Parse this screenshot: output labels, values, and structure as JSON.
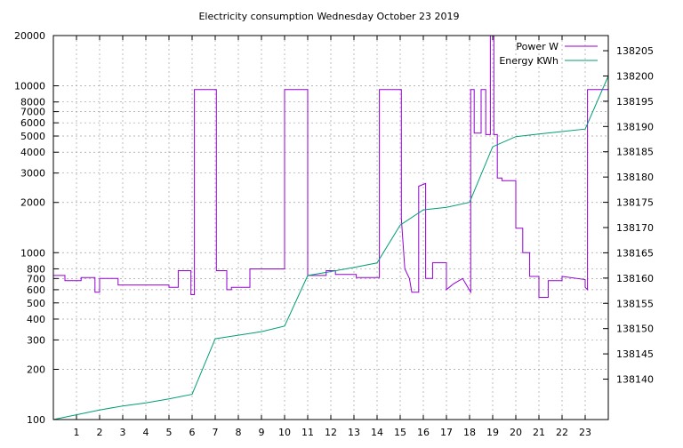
{
  "chart_data": {
    "type": "line",
    "title": "Electricity consumption Wednesday October 23 2019",
    "xlabel": "",
    "ylabel": "",
    "y2label": "",
    "xlim": [
      0,
      24
    ],
    "ylim": [
      100,
      20000
    ],
    "y_scale": "log",
    "y2lim": [
      138132,
      138208
    ],
    "grid": true,
    "legend_position": "top-right",
    "x_ticks": [
      1,
      2,
      3,
      4,
      5,
      6,
      7,
      8,
      9,
      10,
      11,
      12,
      13,
      14,
      15,
      16,
      17,
      18,
      19,
      20,
      21,
      22,
      23
    ],
    "y_ticks": [
      100,
      200,
      300,
      400,
      500,
      600,
      700,
      800,
      1000,
      2000,
      3000,
      4000,
      5000,
      6000,
      7000,
      8000,
      10000,
      20000
    ],
    "y_tick_labels": [
      "100",
      "200",
      "300",
      "400",
      "500",
      "600",
      "700",
      "800",
      "1000",
      "2000",
      "3000",
      "4000",
      "5000",
      "6000",
      "7000",
      "8000",
      "10000",
      "20000"
    ],
    "y2_ticks": [
      138140,
      138145,
      138150,
      138155,
      138160,
      138165,
      138170,
      138175,
      138180,
      138185,
      138190,
      138195,
      138200,
      138205
    ],
    "series": [
      {
        "name": "Power W",
        "axis": "left",
        "color": "#9400d3",
        "points": [
          [
            0,
            730
          ],
          [
            0.5,
            730
          ],
          [
            0.5,
            680
          ],
          [
            1.2,
            680
          ],
          [
            1.2,
            710
          ],
          [
            1.8,
            710
          ],
          [
            1.8,
            580
          ],
          [
            2.0,
            580
          ],
          [
            2.0,
            700
          ],
          [
            2.8,
            700
          ],
          [
            2.8,
            640
          ],
          [
            5.0,
            640
          ],
          [
            5.0,
            620
          ],
          [
            5.4,
            620
          ],
          [
            5.4,
            780
          ],
          [
            5.95,
            780
          ],
          [
            5.95,
            560
          ],
          [
            6.1,
            560
          ],
          [
            6.1,
            9500
          ],
          [
            7.05,
            9500
          ],
          [
            7.05,
            780
          ],
          [
            7.5,
            780
          ],
          [
            7.5,
            600
          ],
          [
            7.7,
            600
          ],
          [
            7.7,
            620
          ],
          [
            8.5,
            620
          ],
          [
            8.5,
            800
          ],
          [
            10.0,
            800
          ],
          [
            10.0,
            9500
          ],
          [
            11.0,
            9500
          ],
          [
            11.0,
            730
          ],
          [
            11.8,
            730
          ],
          [
            11.8,
            780
          ],
          [
            12.2,
            780
          ],
          [
            12.2,
            740
          ],
          [
            13.1,
            740
          ],
          [
            13.1,
            710
          ],
          [
            14.1,
            710
          ],
          [
            14.1,
            9500
          ],
          [
            15.05,
            9500
          ],
          [
            15.05,
            1600
          ],
          [
            15.2,
            800
          ],
          [
            15.4,
            700
          ],
          [
            15.5,
            580
          ],
          [
            15.8,
            580
          ],
          [
            15.8,
            2500
          ],
          [
            16.1,
            2600
          ],
          [
            16.1,
            700
          ],
          [
            16.4,
            700
          ],
          [
            16.4,
            870
          ],
          [
            17.0,
            870
          ],
          [
            17.0,
            600
          ],
          [
            17.3,
            650
          ],
          [
            17.7,
            700
          ],
          [
            18.05,
            580
          ],
          [
            18.05,
            9500
          ],
          [
            18.2,
            9500
          ],
          [
            18.2,
            5200
          ],
          [
            18.5,
            5200
          ],
          [
            18.5,
            9500
          ],
          [
            18.7,
            9500
          ],
          [
            18.7,
            5100
          ],
          [
            18.9,
            5100
          ],
          [
            18.9,
            20000
          ],
          [
            19.05,
            20000
          ],
          [
            19.05,
            5100
          ],
          [
            19.2,
            5100
          ],
          [
            19.2,
            2800
          ],
          [
            19.4,
            2800
          ],
          [
            19.4,
            2700
          ],
          [
            20.0,
            2700
          ],
          [
            20.0,
            1400
          ],
          [
            20.3,
            1400
          ],
          [
            20.3,
            1000
          ],
          [
            20.6,
            1000
          ],
          [
            20.6,
            720
          ],
          [
            21.0,
            720
          ],
          [
            21.0,
            540
          ],
          [
            21.4,
            540
          ],
          [
            21.4,
            680
          ],
          [
            22.0,
            680
          ],
          [
            22.0,
            720
          ],
          [
            23.0,
            690
          ],
          [
            23.0,
            620
          ],
          [
            23.1,
            600
          ],
          [
            23.1,
            9500
          ],
          [
            24.0,
            9500
          ]
        ]
      },
      {
        "name": "Energy KWh",
        "axis": "right",
        "color": "#009e73",
        "points": [
          [
            0,
            138132
          ],
          [
            2,
            138133.9
          ],
          [
            3,
            138134.7
          ],
          [
            4,
            138135.3
          ],
          [
            5,
            138136.1
          ],
          [
            6,
            138137
          ],
          [
            7,
            138148
          ],
          [
            8,
            138148.7
          ],
          [
            9,
            138149.4
          ],
          [
            10,
            138150.5
          ],
          [
            11,
            138160.5
          ],
          [
            12,
            138161.3
          ],
          [
            13,
            138162.1
          ],
          [
            14,
            138163
          ],
          [
            15,
            138170.5
          ],
          [
            16,
            138173.5
          ],
          [
            17,
            138174
          ],
          [
            18,
            138175
          ],
          [
            19,
            138186
          ],
          [
            20,
            138188
          ],
          [
            21,
            138188.5
          ],
          [
            22,
            138189
          ],
          [
            23,
            138189.5
          ],
          [
            24,
            138200
          ]
        ]
      }
    ]
  }
}
